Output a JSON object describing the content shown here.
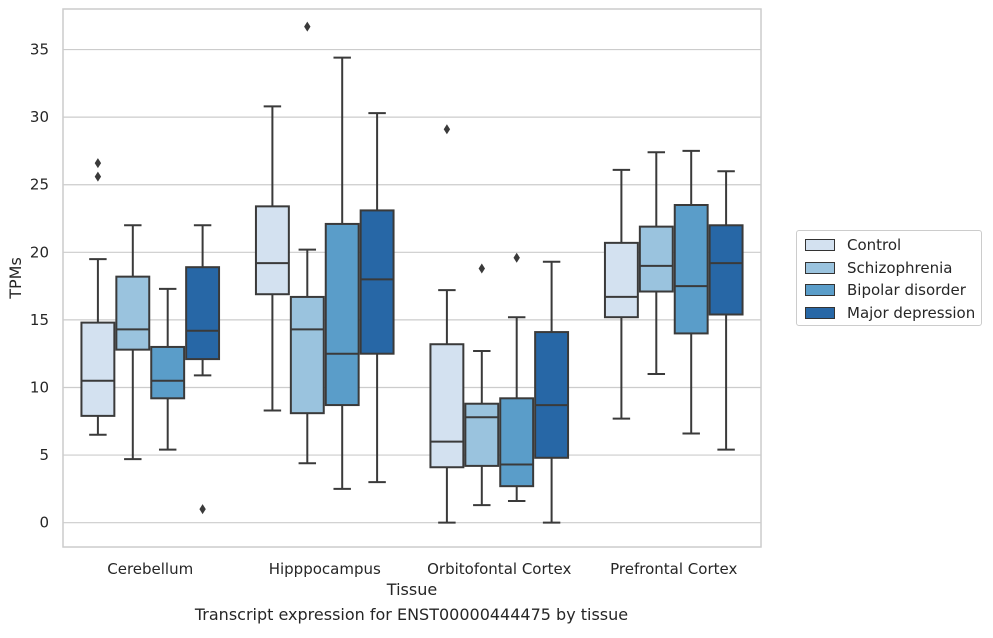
{
  "chart_data": {
    "type": "box",
    "xlabel": "Tissue",
    "ylabel": "TPMs",
    "caption": "Transcript expression for ENST00000444475 by tissue",
    "ylim": [
      -1.8,
      38.0
    ],
    "yticks": [
      0,
      5,
      10,
      15,
      20,
      25,
      30,
      35
    ],
    "grid": "horizontal",
    "legend_position": "right",
    "categories": [
      "Cerebellum",
      "Hipppocampus",
      "Orbitofontal Cortex",
      "Prefrontal Cortex"
    ],
    "series": [
      {
        "name": "Control",
        "color": "#d3e1f0",
        "boxes": [
          {
            "whisker_low": 6.5,
            "q1": 7.9,
            "median": 10.5,
            "q3": 14.8,
            "whisker_high": 19.5,
            "outliers": [
              25.6,
              26.6
            ]
          },
          {
            "whisker_low": 8.3,
            "q1": 16.9,
            "median": 19.2,
            "q3": 23.4,
            "whisker_high": 30.8,
            "outliers": []
          },
          {
            "whisker_low": 0.0,
            "q1": 4.1,
            "median": 6.0,
            "q3": 13.2,
            "whisker_high": 17.2,
            "outliers": [
              29.1
            ]
          },
          {
            "whisker_low": 7.7,
            "q1": 15.2,
            "median": 16.7,
            "q3": 20.7,
            "whisker_high": 26.1,
            "outliers": []
          }
        ]
      },
      {
        "name": "Schizophrenia",
        "color": "#9ac3de",
        "boxes": [
          {
            "whisker_low": 4.7,
            "q1": 12.8,
            "median": 14.3,
            "q3": 18.2,
            "whisker_high": 22.0,
            "outliers": []
          },
          {
            "whisker_low": 4.4,
            "q1": 8.1,
            "median": 14.3,
            "q3": 16.7,
            "whisker_high": 20.2,
            "outliers": [
              36.7
            ]
          },
          {
            "whisker_low": 1.3,
            "q1": 4.2,
            "median": 7.8,
            "q3": 8.8,
            "whisker_high": 12.7,
            "outliers": [
              18.8
            ]
          },
          {
            "whisker_low": 11.0,
            "q1": 17.1,
            "median": 19.0,
            "q3": 21.9,
            "whisker_high": 27.4,
            "outliers": []
          }
        ]
      },
      {
        "name": "Bipolar disorder",
        "color": "#5a9dc9",
        "boxes": [
          {
            "whisker_low": 5.4,
            "q1": 9.2,
            "median": 10.5,
            "q3": 13.0,
            "whisker_high": 17.3,
            "outliers": []
          },
          {
            "whisker_low": 2.5,
            "q1": 8.7,
            "median": 12.5,
            "q3": 22.1,
            "whisker_high": 34.4,
            "outliers": []
          },
          {
            "whisker_low": 1.6,
            "q1": 2.7,
            "median": 4.3,
            "q3": 9.2,
            "whisker_high": 15.2,
            "outliers": [
              19.6
            ]
          },
          {
            "whisker_low": 6.6,
            "q1": 14.0,
            "median": 17.5,
            "q3": 23.5,
            "whisker_high": 27.5,
            "outliers": []
          }
        ]
      },
      {
        "name": "Major depression",
        "color": "#2767a6",
        "boxes": [
          {
            "whisker_low": 10.9,
            "q1": 12.1,
            "median": 14.2,
            "q3": 18.9,
            "whisker_high": 22.0,
            "outliers": [
              1.0
            ]
          },
          {
            "whisker_low": 3.0,
            "q1": 12.5,
            "median": 18.0,
            "q3": 23.1,
            "whisker_high": 30.3,
            "outliers": []
          },
          {
            "whisker_low": 0.0,
            "q1": 4.8,
            "median": 8.7,
            "q3": 14.1,
            "whisker_high": 19.3,
            "outliers": []
          },
          {
            "whisker_low": 5.4,
            "q1": 15.4,
            "median": 19.2,
            "q3": 22.0,
            "whisker_high": 26.0,
            "outliers": []
          }
        ]
      }
    ]
  }
}
